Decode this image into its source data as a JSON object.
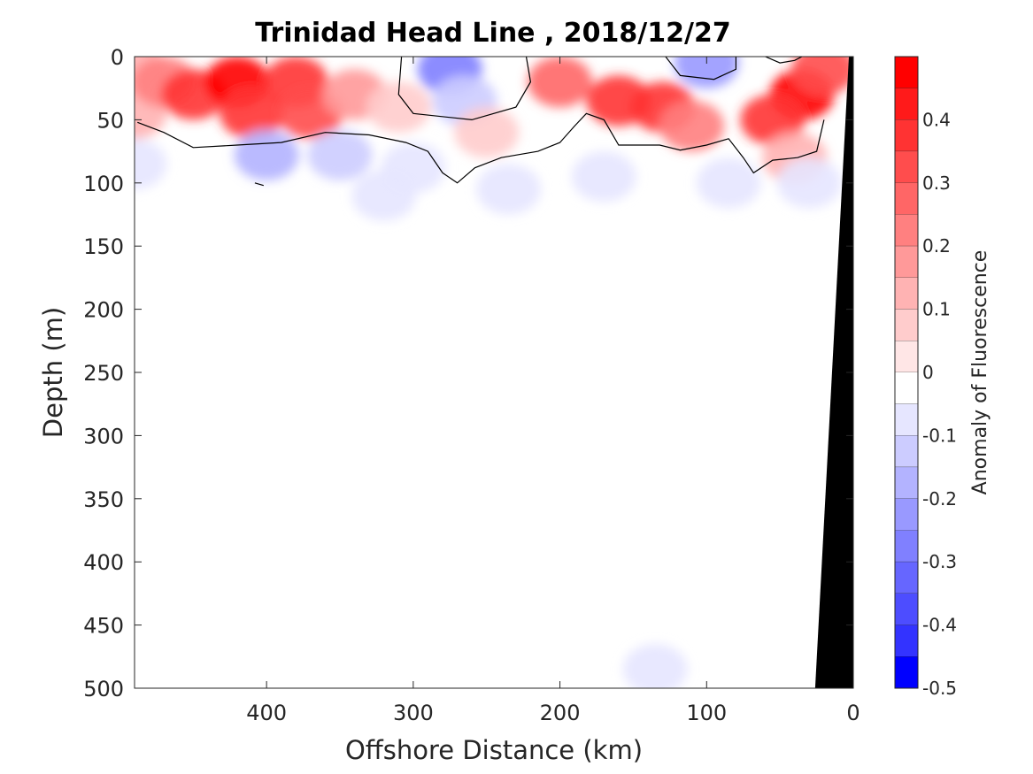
{
  "chart_data": {
    "type": "heatmap",
    "title": "Trinidad Head Line , 2018/12/27",
    "xlabel": "Offshore Distance (km)",
    "ylabel": "Depth (m)",
    "xlim": [
      490,
      0
    ],
    "ylim": [
      0,
      500
    ],
    "x_ticks": [
      400,
      300,
      200,
      100,
      0
    ],
    "x_tick_labels": [
      "400",
      "300",
      "200",
      "100",
      "0"
    ],
    "y_ticks": [
      0,
      50,
      100,
      150,
      200,
      250,
      300,
      350,
      400,
      450,
      500
    ],
    "y_tick_labels": [
      "0",
      "50",
      "100",
      "150",
      "200",
      "250",
      "300",
      "350",
      "400",
      "450",
      "500"
    ],
    "colorbar": {
      "label": "Anomaly of Fluorescence",
      "range": [
        -0.5,
        0.5
      ],
      "ticks": [
        0.4,
        0.3,
        0.2,
        0.1,
        0,
        -0.1,
        -0.2,
        -0.3,
        -0.4,
        -0.5
      ],
      "tick_labels": [
        "0.4",
        "0.3",
        "0.2",
        "0.1",
        "0",
        "-0.1",
        "-0.2",
        "-0.3",
        "-0.4",
        "-0.5"
      ],
      "levels": [
        {
          "min": 0.45,
          "max": 0.5,
          "color": "#ff0000"
        },
        {
          "min": 0.4,
          "max": 0.45,
          "color": "#ff1a1a"
        },
        {
          "min": 0.35,
          "max": 0.4,
          "color": "#ff3333"
        },
        {
          "min": 0.3,
          "max": 0.35,
          "color": "#ff4d4d"
        },
        {
          "min": 0.25,
          "max": 0.3,
          "color": "#ff6666"
        },
        {
          "min": 0.2,
          "max": 0.25,
          "color": "#ff8080"
        },
        {
          "min": 0.15,
          "max": 0.2,
          "color": "#ff9999"
        },
        {
          "min": 0.1,
          "max": 0.15,
          "color": "#ffb3b3"
        },
        {
          "min": 0.05,
          "max": 0.1,
          "color": "#ffcccc"
        },
        {
          "min": 0.0,
          "max": 0.05,
          "color": "#ffe6e6"
        },
        {
          "min": -0.05,
          "max": 0.0,
          "color": "#ffffff"
        },
        {
          "min": -0.1,
          "max": -0.05,
          "color": "#e6e6ff"
        },
        {
          "min": -0.15,
          "max": -0.1,
          "color": "#ccccff"
        },
        {
          "min": -0.2,
          "max": -0.15,
          "color": "#b3b3ff"
        },
        {
          "min": -0.25,
          "max": -0.2,
          "color": "#9999ff"
        },
        {
          "min": -0.3,
          "max": -0.25,
          "color": "#8080ff"
        },
        {
          "min": -0.35,
          "max": -0.3,
          "color": "#6666ff"
        },
        {
          "min": -0.4,
          "max": -0.35,
          "color": "#4d4dff"
        },
        {
          "min": -0.45,
          "max": -0.4,
          "color": "#3333ff"
        },
        {
          "min": -0.5,
          "max": -0.45,
          "color": "#0000ff"
        }
      ]
    },
    "anomaly_points": [
      {
        "x": 490,
        "y": 10,
        "v": 0.12
      },
      {
        "x": 490,
        "y": 45,
        "v": 0.1
      },
      {
        "x": 490,
        "y": 85,
        "v": -0.08
      },
      {
        "x": 470,
        "y": 20,
        "v": 0.2
      },
      {
        "x": 450,
        "y": 30,
        "v": 0.35
      },
      {
        "x": 420,
        "y": 20,
        "v": 0.47
      },
      {
        "x": 410,
        "y": 45,
        "v": 0.35
      },
      {
        "x": 380,
        "y": 20,
        "v": 0.38
      },
      {
        "x": 370,
        "y": 45,
        "v": 0.33
      },
      {
        "x": 340,
        "y": 30,
        "v": 0.18
      },
      {
        "x": 310,
        "y": 40,
        "v": 0.06
      },
      {
        "x": 400,
        "y": 78,
        "v": -0.16
      },
      {
        "x": 350,
        "y": 78,
        "v": -0.15
      },
      {
        "x": 300,
        "y": 88,
        "v": -0.1
      },
      {
        "x": 320,
        "y": 110,
        "v": -0.06
      },
      {
        "x": 275,
        "y": 10,
        "v": -0.3
      },
      {
        "x": 265,
        "y": 35,
        "v": -0.15
      },
      {
        "x": 250,
        "y": 60,
        "v": 0.08
      },
      {
        "x": 235,
        "y": 105,
        "v": -0.1
      },
      {
        "x": 200,
        "y": 20,
        "v": 0.25
      },
      {
        "x": 160,
        "y": 35,
        "v": 0.36
      },
      {
        "x": 130,
        "y": 40,
        "v": 0.38
      },
      {
        "x": 110,
        "y": 55,
        "v": 0.2
      },
      {
        "x": 170,
        "y": 95,
        "v": -0.06
      },
      {
        "x": 100,
        "y": 5,
        "v": -0.25
      },
      {
        "x": 85,
        "y": 100,
        "v": -0.07
      },
      {
        "x": 35,
        "y": 30,
        "v": 0.48
      },
      {
        "x": 55,
        "y": 50,
        "v": 0.35
      },
      {
        "x": 20,
        "y": 10,
        "v": 0.3
      },
      {
        "x": 40,
        "y": 80,
        "v": 0.1
      },
      {
        "x": 30,
        "y": 100,
        "v": -0.08
      },
      {
        "x": 135,
        "y": 485,
        "v": -0.1
      }
    ],
    "zero_contour": [
      [
        [
          488,
          52
        ],
        [
          470,
          60
        ],
        [
          450,
          72
        ],
        [
          420,
          70
        ],
        [
          390,
          68
        ],
        [
          360,
          60
        ],
        [
          330,
          62
        ],
        [
          305,
          68
        ],
        [
          290,
          75
        ],
        [
          280,
          92
        ],
        [
          270,
          100
        ],
        [
          258,
          88
        ],
        [
          240,
          80
        ],
        [
          215,
          75
        ],
        [
          200,
          68
        ],
        [
          190,
          55
        ],
        [
          182,
          45
        ],
        [
          170,
          50
        ],
        [
          165,
          60
        ],
        [
          160,
          70
        ],
        [
          148,
          70
        ],
        [
          132,
          70
        ],
        [
          118,
          74
        ],
        [
          100,
          70
        ],
        [
          85,
          65
        ],
        [
          75,
          80
        ],
        [
          68,
          92
        ],
        [
          55,
          82
        ],
        [
          38,
          80
        ],
        [
          25,
          75
        ],
        [
          20,
          50
        ]
      ],
      [
        [
          308,
          0
        ],
        [
          310,
          30
        ],
        [
          300,
          45
        ],
        [
          260,
          50
        ],
        [
          230,
          40
        ],
        [
          220,
          20
        ],
        [
          223,
          0
        ]
      ],
      [
        [
          128,
          0
        ],
        [
          118,
          15
        ],
        [
          95,
          18
        ],
        [
          80,
          10
        ],
        [
          80,
          0
        ]
      ],
      [
        [
          60,
          0
        ],
        [
          50,
          5
        ],
        [
          40,
          3
        ],
        [
          35,
          0
        ]
      ],
      [
        [
          408,
          100
        ],
        [
          402,
          102
        ]
      ]
    ],
    "seafloor": [
      [
        3,
        0
      ],
      [
        0,
        0
      ],
      [
        0,
        500
      ],
      [
        26,
        500
      ]
    ]
  }
}
